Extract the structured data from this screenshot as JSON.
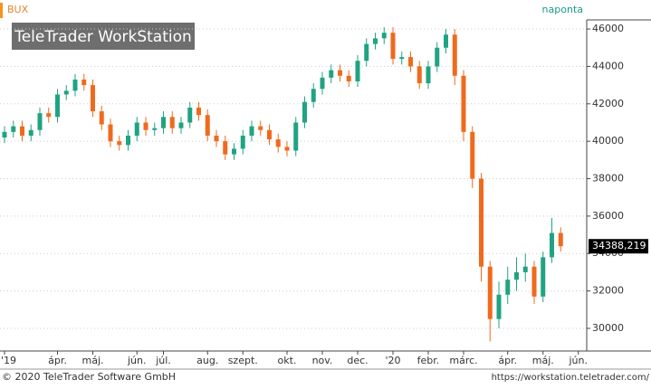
{
  "chart_data": {
    "type": "candlestick",
    "title": "BUX",
    "period": "naponta",
    "watermark": "TeleTrader WorkStation",
    "footer_left": "© 2020 TeleTrader Software GmbH",
    "footer_right": "https://workstation.teletrader.com/",
    "categories": [
      "'19",
      null,
      null,
      null,
      null,
      null,
      "ápr.",
      null,
      null,
      null,
      "máj.",
      null,
      null,
      null,
      null,
      "jún.",
      null,
      null,
      "júl.",
      null,
      null,
      null,
      null,
      "aug.",
      null,
      null,
      null,
      "szept.",
      null,
      null,
      null,
      null,
      "okt.",
      null,
      null,
      null,
      "nov.",
      null,
      null,
      null,
      "dec.",
      null,
      null,
      null,
      "'20",
      null,
      null,
      null,
      "febr.",
      null,
      null,
      null,
      "márc.",
      null,
      null,
      null,
      null,
      "ápr.",
      null,
      null,
      null,
      "máj.",
      null,
      null,
      null,
      "jún."
    ],
    "open": [
      40200,
      40500,
      40800,
      40300,
      40600,
      41500,
      41300,
      42500,
      42700,
      43300,
      43000,
      41600,
      40900,
      40000,
      39800,
      40300,
      41000,
      40600,
      40700,
      41300,
      40700,
      41000,
      41800,
      41400,
      40300,
      40000,
      39300,
      39600,
      40300,
      40800,
      40600,
      40100,
      39700,
      39500,
      41000,
      42100,
      42800,
      43400,
      43800,
      43500,
      43200,
      44300,
      45200,
      45500,
      45800,
      44400,
      44500,
      44000,
      43100,
      44000,
      45000,
      45700,
      43500,
      40500,
      38000,
      33300,
      30500,
      31800,
      32600,
      33000,
      33300,
      31700,
      33800,
      35100,
      null,
      null
    ],
    "high": [
      40800,
      41100,
      41100,
      40900,
      41800,
      41800,
      42800,
      43000,
      43600,
      43600,
      43300,
      41900,
      41200,
      40300,
      40600,
      41300,
      41300,
      41000,
      41600,
      41600,
      41300,
      42100,
      42100,
      41700,
      40600,
      40300,
      39900,
      40600,
      41100,
      41100,
      40900,
      40400,
      40000,
      41300,
      42400,
      43100,
      43700,
      44100,
      44100,
      43800,
      44600,
      45500,
      45800,
      46100,
      46100,
      44800,
      44800,
      44300,
      44300,
      45300,
      46000,
      46000,
      43800,
      40800,
      38300,
      33600,
      32500,
      33300,
      33800,
      34000,
      33600,
      34100,
      35900,
      35400,
      null,
      null
    ],
    "low": [
      39900,
      40200,
      40000,
      40000,
      40300,
      41000,
      41000,
      42200,
      42400,
      42700,
      41300,
      40600,
      39700,
      39500,
      39500,
      40000,
      40300,
      40300,
      40400,
      40400,
      40400,
      40700,
      41100,
      40000,
      39700,
      39000,
      39000,
      39300,
      40000,
      40300,
      39800,
      39400,
      39200,
      39200,
      40700,
      41800,
      42500,
      43100,
      43200,
      42900,
      42900,
      44000,
      44900,
      45200,
      44100,
      44100,
      43700,
      42800,
      42800,
      43700,
      44700,
      43000,
      40000,
      37500,
      32500,
      29300,
      30000,
      31300,
      32000,
      32500,
      31300,
      31400,
      33500,
      34100,
      null,
      null
    ],
    "close": [
      40500,
      40800,
      40300,
      40600,
      41500,
      41300,
      42500,
      42700,
      43300,
      43000,
      41600,
      40900,
      40000,
      39800,
      40300,
      41000,
      40600,
      40700,
      41300,
      40700,
      41000,
      41800,
      41400,
      40300,
      40000,
      39300,
      39600,
      40300,
      40800,
      40600,
      40100,
      39700,
      39500,
      41000,
      42100,
      42800,
      43400,
      43800,
      43500,
      43200,
      44300,
      45200,
      45500,
      45800,
      44400,
      44500,
      44000,
      43100,
      44000,
      45000,
      45700,
      43500,
      40500,
      38000,
      33300,
      30500,
      31800,
      32600,
      33000,
      33300,
      31700,
      33800,
      35100,
      34388.219,
      null,
      null
    ],
    "last_value": {
      "value": 34388.219,
      "label": "34388,219"
    },
    "up_color": "#20a383",
    "down_color": "#f06a1d",
    "ylim": [
      28790,
      47550
    ],
    "yticks": [
      30000,
      32000,
      34000,
      36000,
      38000,
      40000,
      42000,
      44000,
      46000
    ],
    "grid": true
  }
}
